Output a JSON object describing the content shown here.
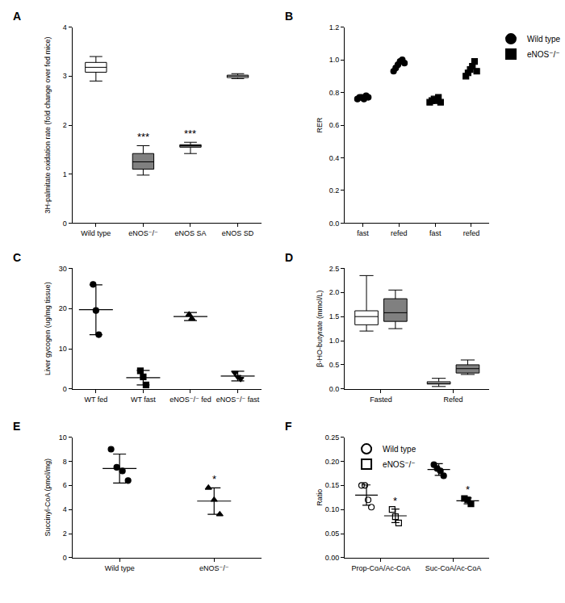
{
  "chart_data": [
    {
      "title": "A",
      "type": "box",
      "categories": [
        "Wild type",
        "eNOS⁻/⁻",
        "eNOS SA",
        "eNOS SD"
      ],
      "y_label": "3H-palmitate oxidation rate (fold change over fed mice)",
      "ylim": [
        0,
        4
      ],
      "yticks": [
        0,
        1,
        2,
        3,
        4
      ],
      "boxes": [
        {
          "min": 2.9,
          "q1": 3.08,
          "median": 3.18,
          "q3": 3.28,
          "max": 3.4
        },
        {
          "min": 0.98,
          "q1": 1.1,
          "median": 1.25,
          "q3": 1.42,
          "max": 1.58
        },
        {
          "min": 1.42,
          "q1": 1.55,
          "median": 1.58,
          "q3": 1.6,
          "max": 1.65
        },
        {
          "min": 2.95,
          "q1": 2.97,
          "median": 3.0,
          "q3": 3.02,
          "max": 3.05
        }
      ],
      "colors": [
        "#ffffff",
        "#808080",
        "#808080",
        "#ffffff"
      ],
      "annotations": [
        {
          "text": "***",
          "category": "eNOS⁻/⁻"
        },
        {
          "text": "***",
          "category": "eNOS SA"
        }
      ]
    },
    {
      "title": "B",
      "type": "scatter",
      "categories": [
        "fast",
        "refed",
        "fast",
        "refed"
      ],
      "y_label": "RER",
      "ylim": [
        0,
        1.2
      ],
      "yticks": [
        {
          "value": 0,
          "label": "0.0"
        },
        0.2,
        0.4,
        0.6,
        0.8,
        {
          "value": 1,
          "label": "1.0"
        },
        1.2
      ],
      "legend": "upper right",
      "series": [
        {
          "name": "Wild type",
          "marker": "circle",
          "color": "#000000",
          "values": [
            [
              0.76,
              0.77,
              0.77,
              0.76,
              0.78,
              0.77
            ],
            [
              0.93,
              0.95,
              0.97,
              0.99,
              1.0,
              0.98
            ],
            null,
            null
          ]
        },
        {
          "name": "eNOS⁻/⁻",
          "marker": "square",
          "color": "#000000",
          "values": [
            null,
            null,
            [
              0.74,
              0.75,
              0.76,
              0.75,
              0.77,
              0.74
            ],
            [
              0.9,
              0.92,
              0.94,
              0.96,
              0.99,
              0.93
            ]
          ]
        }
      ]
    },
    {
      "title": "C",
      "type": "scatter",
      "categories": [
        "WT fed",
        "WT fast",
        "eNOS⁻/⁻ fed",
        "eNOS⁻/⁻ fast"
      ],
      "y_label": "Liver gycogen (ug/mg tissue)",
      "ylim": [
        0,
        30
      ],
      "yticks": [
        0,
        10,
        20,
        30
      ],
      "series": [
        {
          "color": "#000000",
          "markers": [
            "circle",
            "square",
            "triangle-up",
            "triangle-down"
          ],
          "values": [
            [
              26,
              19.5,
              13.5
            ],
            [
              4.5,
              3,
              1
            ],
            [
              18.5,
              17.5
            ],
            [
              4,
              3,
              2.5
            ]
          ],
          "means": [
            19.7,
            2.8,
            18,
            3.2
          ],
          "errors": [
            6.2,
            1.8,
            1,
            1.2
          ]
        }
      ]
    },
    {
      "title": "D",
      "type": "box",
      "categories": [
        "Fasted",
        "Refed"
      ],
      "y_label": "β-HO-butyrate (mmol/L)",
      "ylim": [
        0,
        2.5
      ],
      "yticks": [
        {
          "value": 0,
          "label": "0.0"
        },
        0.5,
        {
          "value": 1,
          "label": "1.0"
        },
        1.5,
        {
          "value": 2,
          "label": "2.0"
        },
        2.5
      ],
      "series": [
        {
          "color": "#ffffff",
          "boxes": [
            {
              "min": 1.2,
              "q1": 1.33,
              "median": 1.5,
              "q3": 1.62,
              "max": 2.35
            },
            {
              "min": 0.05,
              "q1": 0.1,
              "median": 0.12,
              "q3": 0.15,
              "max": 0.22
            }
          ]
        },
        {
          "color": "#808080",
          "boxes": [
            {
              "min": 1.25,
              "q1": 1.4,
              "median": 1.58,
              "q3": 1.87,
              "max": 2.05
            },
            {
              "min": 0.3,
              "q1": 0.33,
              "median": 0.42,
              "q3": 0.5,
              "max": 0.6
            }
          ]
        }
      ]
    },
    {
      "title": "E",
      "type": "scatter",
      "categories": [
        "Wild type",
        "eNOS⁻/⁻"
      ],
      "y_label": "Succinyl-CoA (pmol/mg)",
      "ylim": [
        0,
        10
      ],
      "yticks": [
        0,
        2,
        4,
        6,
        8,
        10
      ],
      "series": [
        {
          "color": "#000000",
          "markers": [
            "circle",
            "triangle-up"
          ],
          "values": [
            [
              9.0,
              7.5,
              7.2,
              6.4
            ],
            [
              5.8,
              4.8,
              3.6
            ]
          ],
          "means": [
            7.4,
            4.7
          ],
          "errors": [
            1.2,
            1.1
          ]
        }
      ],
      "annotations": [
        {
          "text": "*",
          "category": "eNOS⁻/⁻"
        }
      ]
    },
    {
      "title": "F",
      "type": "scatter",
      "categories": [
        "Prop-CoA/Ac-CoA",
        "Suc-CoA/Ac-CoA"
      ],
      "y_label": "Ratio",
      "ylim": [
        0,
        0.25
      ],
      "yticks": [
        {
          "value": 0,
          "label": "0.00"
        },
        {
          "value": 0.05,
          "label": "0.05"
        },
        {
          "value": 0.1,
          "label": "0.10"
        },
        {
          "value": 0.15,
          "label": "0.15"
        },
        {
          "value": 0.2,
          "label": "0.20"
        },
        0.25
      ],
      "legend": "upper left",
      "series": [
        {
          "name": "Wild type",
          "color": "#000000",
          "markers": [
            "circle-open",
            "circle"
          ],
          "values": [
            [
              0.15,
              0.15,
              0.12,
              0.105
            ],
            [
              0.193,
              0.185,
              0.18,
              0.17
            ]
          ],
          "means": [
            0.13,
            0.183
          ],
          "errors": [
            0.021,
            0.012
          ]
        },
        {
          "name": "eNOS⁻/⁻",
          "color": "#000000",
          "markers": [
            "square-open",
            "square"
          ],
          "values": [
            [
              0.1,
              0.085,
              0.072
            ],
            [
              0.123,
              0.12,
              0.112
            ]
          ],
          "means": [
            0.087,
            0.118
          ],
          "errors": [
            0.014,
            0.006
          ]
        }
      ],
      "annotations": [
        {
          "text": "*",
          "category": "Prop-CoA/Ac-CoA",
          "series": "eNOS⁻/⁻"
        },
        {
          "text": "*",
          "category": "Suc-CoA/Ac-CoA",
          "series": "eNOS⁻/⁻"
        }
      ]
    }
  ]
}
